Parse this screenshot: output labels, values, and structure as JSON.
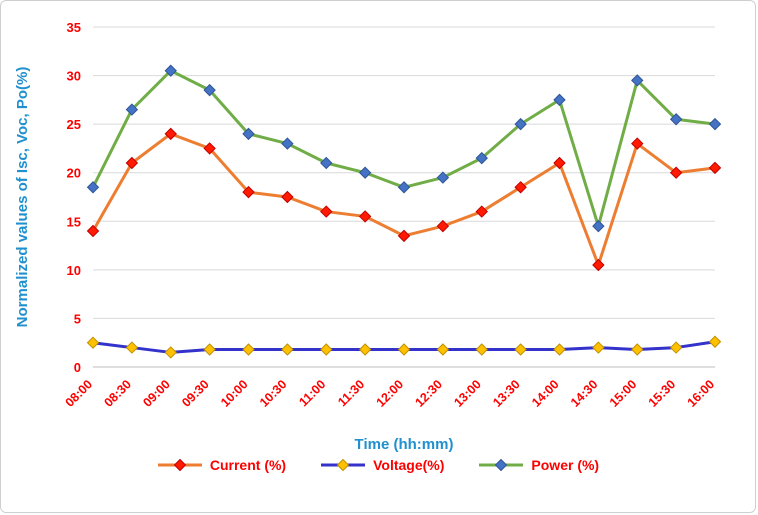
{
  "frame": {
    "background": "#ffffff",
    "border_color": "#cfcfcf"
  },
  "style": {
    "axis_title_color": "#2090CE",
    "tick_label_color": "#FF0000",
    "legend_label_color": "#FF0000",
    "grid_color": "#d9d9d9",
    "axis_line_color": "#bfbfbf"
  },
  "chart_data": {
    "type": "line",
    "title": "",
    "xlabel": "Time (hh:mm)",
    "ylabel": "Normalized values of Isc, Voc, Po(%)",
    "ylim": [
      0,
      35
    ],
    "ytick_step": 5,
    "grid": true,
    "legend_position": "bottom",
    "categories": [
      "08:00",
      "08:30",
      "09:00",
      "09:30",
      "10:00",
      "10:30",
      "11:00",
      "11:30",
      "12:00",
      "12:30",
      "13:00",
      "13:30",
      "14:00",
      "14:30",
      "15:00",
      "15:30",
      "16:00"
    ],
    "series": [
      {
        "name": "Current (%)",
        "line_color": "#ED7D31",
        "marker_color": "#FF1A00",
        "marker_stroke": "#C00000",
        "marker": "diamond",
        "values": [
          14,
          21,
          24,
          22.5,
          18,
          17.5,
          16,
          15.5,
          13.5,
          14.5,
          16,
          18.5,
          21,
          10.5,
          23,
          20,
          20.5
        ]
      },
      {
        "name": "Voltage(%)",
        "line_color": "#3333CC",
        "marker_color": "#FFC000",
        "marker_stroke": "#BF9000",
        "marker": "diamond",
        "values": [
          2.5,
          2,
          1.5,
          1.8,
          1.8,
          1.8,
          1.8,
          1.8,
          1.8,
          1.8,
          1.8,
          1.8,
          1.8,
          2,
          1.8,
          2,
          2.6
        ]
      },
      {
        "name": "Power (%)",
        "line_color": "#70AD47",
        "marker_color": "#4472C4",
        "marker_stroke": "#2F5597",
        "marker": "diamond",
        "values": [
          18.5,
          26.5,
          30.5,
          28.5,
          24,
          23,
          21,
          20,
          18.5,
          19.5,
          21.5,
          25,
          27.5,
          14.5,
          29.5,
          25.5,
          25
        ]
      }
    ]
  }
}
